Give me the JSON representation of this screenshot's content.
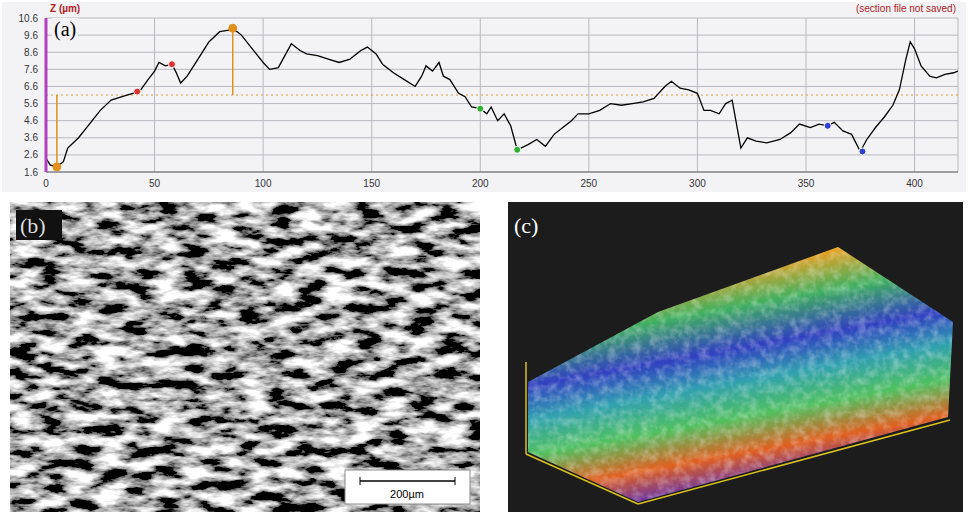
{
  "chart_data": {
    "type": "line",
    "panel_label": "(a)",
    "y_label": "Z (µm)",
    "annotation": "(section file not saved)",
    "color": "#000000",
    "grid": true,
    "xlim": [
      0,
      420
    ],
    "xticks": [
      0,
      50,
      100,
      150,
      200,
      250,
      300,
      350,
      400
    ],
    "ylim": [
      1.6,
      10.6
    ],
    "yticks": [
      1.6,
      2.6,
      3.6,
      4.6,
      5.6,
      6.6,
      7.6,
      8.6,
      9.6,
      10.6
    ],
    "x": [
      0,
      2,
      5,
      8,
      10,
      15,
      20,
      25,
      30,
      35,
      40,
      43,
      47,
      50,
      52,
      55,
      58,
      60,
      62,
      65,
      70,
      75,
      80,
      85,
      88,
      90,
      95,
      100,
      103,
      107,
      110,
      113,
      117,
      120,
      125,
      130,
      135,
      140,
      145,
      148,
      152,
      155,
      160,
      165,
      170,
      173,
      175,
      178,
      181,
      183,
      186,
      190,
      193,
      196,
      200,
      203,
      205,
      208,
      211,
      214,
      217,
      222,
      226,
      230,
      234,
      238,
      242,
      245,
      250,
      255,
      260,
      265,
      270,
      275,
      280,
      285,
      288,
      292,
      296,
      300,
      303,
      306,
      310,
      313,
      316,
      320,
      323,
      327,
      332,
      338,
      343,
      347,
      352,
      356,
      360,
      363,
      367,
      371,
      375,
      378,
      382,
      386,
      390,
      393,
      396,
      398,
      400,
      403,
      407,
      410,
      414,
      418,
      420
    ],
    "values": [
      2.4,
      2.0,
      1.9,
      2.2,
      3.0,
      3.6,
      4.4,
      5.2,
      5.8,
      6.0,
      6.2,
      6.3,
      7.0,
      7.5,
      8.0,
      7.8,
      7.9,
      7.4,
      6.8,
      7.2,
      8.2,
      9.2,
      9.8,
      9.9,
      9.8,
      9.6,
      8.8,
      8.0,
      7.6,
      7.7,
      8.4,
      9.1,
      8.7,
      8.5,
      8.4,
      8.2,
      8.0,
      8.2,
      8.7,
      8.9,
      8.5,
      7.9,
      7.4,
      7.0,
      6.6,
      7.2,
      7.8,
      7.5,
      8.0,
      7.2,
      7.0,
      6.2,
      6.0,
      5.4,
      5.3,
      5.0,
      5.4,
      4.6,
      5.0,
      4.3,
      2.9,
      3.2,
      3.5,
      3.1,
      3.8,
      4.2,
      4.6,
      5.0,
      5.0,
      5.2,
      5.6,
      5.5,
      5.6,
      5.7,
      5.9,
      6.6,
      6.9,
      6.5,
      6.4,
      6.2,
      5.2,
      5.2,
      5.0,
      5.6,
      5.8,
      3.0,
      3.6,
      3.4,
      3.3,
      3.5,
      3.9,
      4.4,
      4.2,
      4.4,
      4.3,
      4.5,
      4.0,
      3.8,
      2.8,
      3.5,
      4.2,
      4.8,
      5.5,
      6.4,
      8.2,
      9.2,
      8.8,
      7.8,
      7.2,
      7.1,
      7.3,
      7.4,
      7.5
    ],
    "mean_line": 6.1,
    "cursors": {
      "color": "#e0901c",
      "points": [
        {
          "x": 5,
          "y": 1.9
        },
        {
          "x": 86,
          "y": 10.0
        }
      ]
    },
    "markers": [
      {
        "color": "#e03030",
        "points": [
          {
            "x": 42,
            "y": 6.3
          },
          {
            "x": 58,
            "y": 7.9
          }
        ]
      },
      {
        "color": "#30b030",
        "points": [
          {
            "x": 200,
            "y": 5.3
          },
          {
            "x": 217,
            "y": 2.9
          }
        ]
      },
      {
        "color": "#3040d0",
        "points": [
          {
            "x": 360,
            "y": 4.3
          },
          {
            "x": 376,
            "y": 2.8
          }
        ]
      }
    ]
  },
  "images": [
    {
      "label": "(b)",
      "scale_bar": "200µm"
    },
    {
      "label": "(c)"
    }
  ]
}
